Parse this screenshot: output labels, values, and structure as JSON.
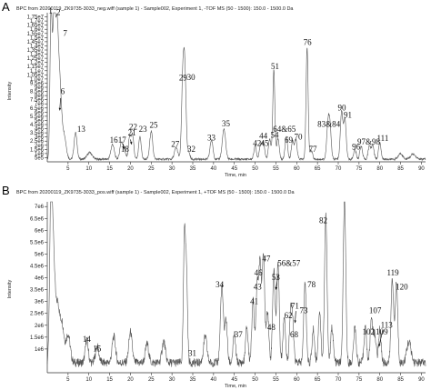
{
  "chart_data": [
    {
      "type": "line",
      "panel_letter": "A",
      "title": "BPC from 20200119_ZK9735-3033_neg.wiff (sample 1) - Sample002, Experiment 1, -TOF MS (50 - 1500): 150.0 - 1500.0 Da",
      "xlabel": "Time, min",
      "ylabel": "Intensity",
      "xlim": [
        0,
        91
      ],
      "ylim": [
        0,
        18000000
      ],
      "x_ticks": [
        5,
        10,
        15,
        20,
        25,
        30,
        35,
        40,
        45,
        50,
        55,
        60,
        65,
        70,
        75,
        80,
        85,
        90
      ],
      "y_ticks": [
        {
          "v": 500000,
          "t": "5e5"
        },
        {
          "v": 1000000,
          "t": "1e6"
        },
        {
          "v": 1500000,
          "t": "1.5e6"
        },
        {
          "v": 2000000,
          "t": "2e6"
        },
        {
          "v": 2500000,
          "t": "2.5e6"
        },
        {
          "v": 3000000,
          "t": "3e6"
        },
        {
          "v": 3500000,
          "t": "3.5e6"
        },
        {
          "v": 4000000,
          "t": "4e6"
        },
        {
          "v": 4500000,
          "t": "4.5e6"
        },
        {
          "v": 5000000,
          "t": "5e6"
        },
        {
          "v": 5500000,
          "t": "5.5e6"
        },
        {
          "v": 6000000,
          "t": "6e6"
        },
        {
          "v": 6500000,
          "t": "6.5e6"
        },
        {
          "v": 7000000,
          "t": "7e6"
        },
        {
          "v": 7500000,
          "t": "7.5e6"
        },
        {
          "v": 8000000,
          "t": "8e6"
        },
        {
          "v": 8500000,
          "t": "8.5e6"
        },
        {
          "v": 9000000,
          "t": "9e6"
        },
        {
          "v": 9500000,
          "t": "9.5e6"
        },
        {
          "v": 10000000,
          "t": "1.0e7"
        },
        {
          "v": 10500000,
          "t": "1.05e7"
        },
        {
          "v": 11000000,
          "t": "1.1e7"
        },
        {
          "v": 11500000,
          "t": "1.15e7"
        },
        {
          "v": 12000000,
          "t": "1.2e7"
        },
        {
          "v": 12500000,
          "t": "1.25e7"
        },
        {
          "v": 13000000,
          "t": "1.3e7"
        },
        {
          "v": 13500000,
          "t": "1.35e7"
        },
        {
          "v": 14000000,
          "t": "1.4e7"
        },
        {
          "v": 14500000,
          "t": "1.45e7"
        },
        {
          "v": 15000000,
          "t": "1.5e7"
        },
        {
          "v": 15500000,
          "t": "1.55e7"
        },
        {
          "v": 16000000,
          "t": "1.6e7"
        },
        {
          "v": 16500000,
          "t": "1.65e7"
        },
        {
          "v": 17000000,
          "t": "1.7e7"
        },
        {
          "v": 17500000,
          "t": "1.75e7"
        }
      ],
      "baseline": 300000,
      "peaks": [
        {
          "x": 0.9,
          "y": 17600000,
          "w": 0.25
        },
        {
          "x": 1.6,
          "y": 16800000,
          "w": 0.3
        },
        {
          "x": 2.3,
          "y": 14500000,
          "w": 0.35
        },
        {
          "x": 3.0,
          "y": 8500000,
          "w": 0.4
        },
        {
          "x": 4.0,
          "y": 3000000,
          "w": 0.5
        },
        {
          "x": 6.8,
          "y": 3200000,
          "w": 0.35
        },
        {
          "x": 10.2,
          "y": 800000,
          "w": 0.6
        },
        {
          "x": 15.7,
          "y": 1800000,
          "w": 0.4
        },
        {
          "x": 17.8,
          "y": 2000000,
          "w": 0.35
        },
        {
          "x": 18.5,
          "y": 1200000,
          "w": 0.3
        },
        {
          "x": 19.8,
          "y": 2600000,
          "w": 0.3
        },
        {
          "x": 20.5,
          "y": 2900000,
          "w": 0.3
        },
        {
          "x": 22.3,
          "y": 2700000,
          "w": 0.3
        },
        {
          "x": 25.0,
          "y": 3400000,
          "w": 0.35
        },
        {
          "x": 31.0,
          "y": 1400000,
          "w": 0.4
        },
        {
          "x": 32.6,
          "y": 9200000,
          "w": 0.3
        },
        {
          "x": 33.1,
          "y": 9800000,
          "w": 0.3
        },
        {
          "x": 34.0,
          "y": 900000,
          "w": 0.3
        },
        {
          "x": 39.5,
          "y": 2300000,
          "w": 0.35
        },
        {
          "x": 42.5,
          "y": 3600000,
          "w": 0.4
        },
        {
          "x": 50.0,
          "y": 1600000,
          "w": 0.3
        },
        {
          "x": 51.3,
          "y": 1700000,
          "w": 0.3
        },
        {
          "x": 52.0,
          "y": 2000000,
          "w": 0.3
        },
        {
          "x": 53.5,
          "y": 2500000,
          "w": 0.3
        },
        {
          "x": 54.5,
          "y": 10800000,
          "w": 0.25
        },
        {
          "x": 55.5,
          "y": 2500000,
          "w": 0.3
        },
        {
          "x": 57.5,
          "y": 2800000,
          "w": 0.3
        },
        {
          "x": 59.0,
          "y": 2100000,
          "w": 0.3
        },
        {
          "x": 59.8,
          "y": 2300000,
          "w": 0.3
        },
        {
          "x": 62.5,
          "y": 13500000,
          "w": 0.25
        },
        {
          "x": 63.5,
          "y": 1100000,
          "w": 0.3
        },
        {
          "x": 67.5,
          "y": 3800000,
          "w": 0.3
        },
        {
          "x": 68.0,
          "y": 3900000,
          "w": 0.3
        },
        {
          "x": 70.8,
          "y": 5700000,
          "w": 0.3
        },
        {
          "x": 71.6,
          "y": 4800000,
          "w": 0.3
        },
        {
          "x": 74.0,
          "y": 1200000,
          "w": 0.3
        },
        {
          "x": 75.5,
          "y": 1600000,
          "w": 0.3
        },
        {
          "x": 77.5,
          "y": 1600000,
          "w": 0.3
        },
        {
          "x": 78.3,
          "y": 1700000,
          "w": 0.3
        },
        {
          "x": 80.0,
          "y": 2000000,
          "w": 0.3
        },
        {
          "x": 85.0,
          "y": 700000,
          "w": 0.5
        },
        {
          "x": 88.0,
          "y": 600000,
          "w": 0.6
        }
      ],
      "labels": [
        {
          "t": "1",
          "x": 0.3,
          "y": 17900000
        },
        {
          "t": "2",
          "x": 2.2,
          "y": 17700000
        },
        {
          "t": "7",
          "x": 3.8,
          "y": 15200000
        },
        {
          "t": "6",
          "x": 3.2,
          "y": 8200000
        },
        {
          "t": "13",
          "x": 7.2,
          "y": 3600000
        },
        {
          "t": "16",
          "x": 15.0,
          "y": 2300000
        },
        {
          "t": "17",
          "x": 17.0,
          "y": 2300000
        },
        {
          "t": "18",
          "x": 17.7,
          "y": 1200000
        },
        {
          "t": "21",
          "x": 19.4,
          "y": 3200000
        },
        {
          "t": "22",
          "x": 19.7,
          "y": 3900000
        },
        {
          "t": "23",
          "x": 22.0,
          "y": 3600000
        },
        {
          "t": "25",
          "x": 24.6,
          "y": 4100000
        },
        {
          "t": "27",
          "x": 29.8,
          "y": 1800000
        },
        {
          "t": "29",
          "x": 31.7,
          "y": 9800000
        },
        {
          "t": "30",
          "x": 33.6,
          "y": 9900000
        },
        {
          "t": "32",
          "x": 33.7,
          "y": 1200000
        },
        {
          "t": "33",
          "x": 38.5,
          "y": 2600000
        },
        {
          "t": "35",
          "x": 42.0,
          "y": 4300000
        },
        {
          "t": "42",
          "x": 49.5,
          "y": 1900000
        },
        {
          "t": "44",
          "x": 51.0,
          "y": 2800000
        },
        {
          "t": "45",
          "x": 51.3,
          "y": 1900000
        },
        {
          "t": "51",
          "x": 53.8,
          "y": 11200000
        },
        {
          "t": "54",
          "x": 53.7,
          "y": 2900000
        },
        {
          "t": "64&65",
          "x": 54.3,
          "y": 3600000
        },
        {
          "t": "69",
          "x": 57.1,
          "y": 2300000
        },
        {
          "t": "70",
          "x": 59.4,
          "y": 2700000
        },
        {
          "t": "76",
          "x": 61.6,
          "y": 14100000
        },
        {
          "t": "77",
          "x": 62.9,
          "y": 1200000
        },
        {
          "t": "83&84",
          "x": 65.0,
          "y": 4200000
        },
        {
          "t": "90",
          "x": 69.9,
          "y": 6200000
        },
        {
          "t": "91",
          "x": 71.3,
          "y": 5300000
        },
        {
          "t": "96",
          "x": 73.3,
          "y": 1500000
        },
        {
          "t": "97&98",
          "x": 74.6,
          "y": 2100000
        },
        {
          "t": "111",
          "x": 79.3,
          "y": 2500000
        }
      ],
      "arrows": [
        {
          "x1": 3.2,
          "y1": 7700000,
          "x2": 3.0,
          "y2": 6200000
        },
        {
          "x1": 18.2,
          "y1": 2200000,
          "x2": 18.6,
          "y2": 1500000
        },
        {
          "x1": 20.0,
          "y1": 2700000,
          "x2": 20.3,
          "y2": 2100000
        }
      ]
    },
    {
      "type": "line",
      "panel_letter": "B",
      "title": "BPC from 20200119_ZK9735-3033_pos.wiff (sample 1) - Sample002, Experiment 1, +TOF MS (50 - 1500): 150.0 - 1500.0 Da",
      "xlabel": "Time, min",
      "ylabel": "Intensity",
      "xlim": [
        0,
        91
      ],
      "ylim": [
        0,
        7200000
      ],
      "x_ticks": [
        5,
        10,
        15,
        20,
        25,
        30,
        35,
        40,
        45,
        50,
        55,
        60,
        65,
        70,
        75,
        80,
        85,
        90
      ],
      "y_ticks": [
        {
          "v": 1000000,
          "t": "1e6"
        },
        {
          "v": 1500000,
          "t": "1.5e6"
        },
        {
          "v": 2000000,
          "t": "2e6"
        },
        {
          "v": 2500000,
          "t": "2.5e6"
        },
        {
          "v": 3000000,
          "t": "3e6"
        },
        {
          "v": 3500000,
          "t": "3.5e6"
        },
        {
          "v": 4000000,
          "t": "4e6"
        },
        {
          "v": 4500000,
          "t": "4.5e6"
        },
        {
          "v": 5000000,
          "t": "5e6"
        },
        {
          "v": 5500000,
          "t": "5.5e6"
        },
        {
          "v": 6000000,
          "t": "6e6"
        },
        {
          "v": 6500000,
          "t": "6.5e6"
        },
        {
          "v": 7000000,
          "t": "7e6"
        }
      ],
      "baseline": 400000,
      "peaks": [
        {
          "x": 0.9,
          "y": 7000000,
          "w": 0.3
        },
        {
          "x": 1.5,
          "y": 4300000,
          "w": 0.4
        },
        {
          "x": 2.5,
          "y": 2200000,
          "w": 0.4
        },
        {
          "x": 3.5,
          "y": 1700000,
          "w": 0.5
        },
        {
          "x": 5.0,
          "y": 1200000,
          "w": 0.5
        },
        {
          "x": 9.5,
          "y": 1000000,
          "w": 0.35
        },
        {
          "x": 12.0,
          "y": 700000,
          "w": 0.4
        },
        {
          "x": 16.0,
          "y": 1100000,
          "w": 0.4
        },
        {
          "x": 20.0,
          "y": 1300000,
          "w": 0.4
        },
        {
          "x": 24.0,
          "y": 800000,
          "w": 0.4
        },
        {
          "x": 28.0,
          "y": 900000,
          "w": 0.4
        },
        {
          "x": 33.0,
          "y": 5300000,
          "w": 0.25
        },
        {
          "x": 33.5,
          "y": 3500000,
          "w": 0.25
        },
        {
          "x": 38.0,
          "y": 1100000,
          "w": 0.4
        },
        {
          "x": 42.0,
          "y": 3200000,
          "w": 0.35
        },
        {
          "x": 43.0,
          "y": 1800000,
          "w": 0.3
        },
        {
          "x": 45.0,
          "y": 1200000,
          "w": 0.3
        },
        {
          "x": 48.0,
          "y": 1500000,
          "w": 0.3
        },
        {
          "x": 49.5,
          "y": 2600000,
          "w": 0.3
        },
        {
          "x": 50.5,
          "y": 3300000,
          "w": 0.3
        },
        {
          "x": 51.2,
          "y": 4000000,
          "w": 0.3
        },
        {
          "x": 52.0,
          "y": 4500000,
          "w": 0.3
        },
        {
          "x": 53.0,
          "y": 2200000,
          "w": 0.3
        },
        {
          "x": 54.5,
          "y": 3900000,
          "w": 0.3
        },
        {
          "x": 55.5,
          "y": 4200000,
          "w": 0.3
        },
        {
          "x": 57.0,
          "y": 2000000,
          "w": 0.3
        },
        {
          "x": 58.5,
          "y": 1800000,
          "w": 0.3
        },
        {
          "x": 59.0,
          "y": 1600000,
          "w": 0.3
        },
        {
          "x": 62.0,
          "y": 3400000,
          "w": 0.3
        },
        {
          "x": 64.0,
          "y": 1400000,
          "w": 0.3
        },
        {
          "x": 65.5,
          "y": 2200000,
          "w": 0.3
        },
        {
          "x": 67.0,
          "y": 6200000,
          "w": 0.3
        },
        {
          "x": 68.5,
          "y": 1500000,
          "w": 0.3
        },
        {
          "x": 71.5,
          "y": 6900000,
          "w": 0.3
        },
        {
          "x": 74.0,
          "y": 1500000,
          "w": 0.3
        },
        {
          "x": 76.5,
          "y": 1500000,
          "w": 0.3
        },
        {
          "x": 78.0,
          "y": 1900000,
          "w": 0.3
        },
        {
          "x": 78.8,
          "y": 1200000,
          "w": 0.3
        },
        {
          "x": 80.0,
          "y": 1400000,
          "w": 0.3
        },
        {
          "x": 83.0,
          "y": 3600000,
          "w": 0.3
        },
        {
          "x": 84.0,
          "y": 3400000,
          "w": 0.3
        },
        {
          "x": 87.0,
          "y": 900000,
          "w": 0.5
        }
      ],
      "labels": [
        {
          "t": "14",
          "x": 8.5,
          "y": 1300000
        },
        {
          "t": "15",
          "x": 11.0,
          "y": 900000
        },
        {
          "t": "31",
          "x": 33.9,
          "y": 700000
        },
        {
          "t": "34",
          "x": 40.5,
          "y": 3600000
        },
        {
          "t": "37",
          "x": 45.0,
          "y": 1500000
        },
        {
          "t": "41",
          "x": 48.8,
          "y": 2900000
        },
        {
          "t": "43",
          "x": 49.6,
          "y": 3500000
        },
        {
          "t": "46",
          "x": 49.8,
          "y": 4100000
        },
        {
          "t": "47",
          "x": 51.7,
          "y": 4700000
        },
        {
          "t": "48",
          "x": 52.9,
          "y": 1800000
        },
        {
          "t": "53",
          "x": 54.0,
          "y": 3900000
        },
        {
          "t": "56&57",
          "x": 55.4,
          "y": 4500000
        },
        {
          "t": "62",
          "x": 57.0,
          "y": 2300000
        },
        {
          "t": "68",
          "x": 58.4,
          "y": 1500000
        },
        {
          "t": "71",
          "x": 58.6,
          "y": 2700000
        },
        {
          "t": "73",
          "x": 60.7,
          "y": 2500000
        },
        {
          "t": "78",
          "x": 62.6,
          "y": 3600000
        },
        {
          "t": "82",
          "x": 65.4,
          "y": 6300000
        },
        {
          "t": "102",
          "x": 75.8,
          "y": 1600000
        },
        {
          "t": "107",
          "x": 77.4,
          "y": 2500000
        },
        {
          "t": "109",
          "x": 79.0,
          "y": 1600000
        },
        {
          "t": "113",
          "x": 80.2,
          "y": 1900000
        },
        {
          "t": "119",
          "x": 81.7,
          "y": 4100000
        },
        {
          "t": "120",
          "x": 83.8,
          "y": 3500000
        }
      ],
      "arrows": [
        {
          "x1": 55.5,
          "y1": 4100000,
          "x2": 55.0,
          "y2": 3500000
        },
        {
          "x1": 59.8,
          "y1": 2600000,
          "x2": 59.6,
          "y2": 2100000
        },
        {
          "x1": 80.7,
          "y1": 1800000,
          "x2": 79.8,
          "y2": 1100000
        }
      ]
    }
  ]
}
